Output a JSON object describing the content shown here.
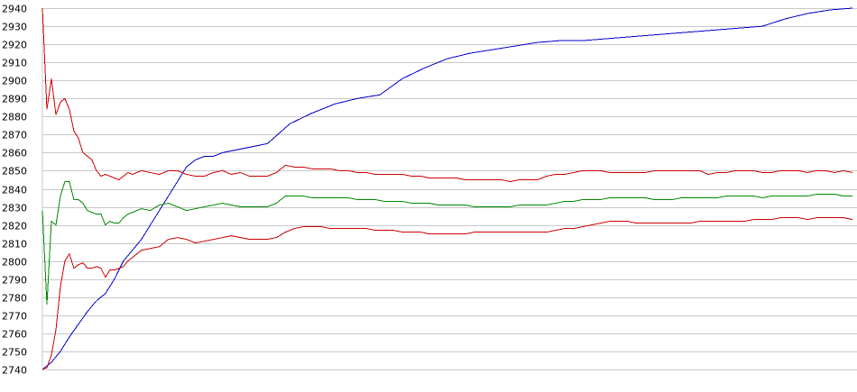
{
  "chart_data": {
    "type": "line",
    "title": "",
    "xlabel": "",
    "ylabel": "",
    "ylim": [
      2740,
      2940
    ],
    "xlim": [
      0,
      180
    ],
    "grid": true,
    "yticks": [
      "2940",
      "2930",
      "2920",
      "2910",
      "2900",
      "2890",
      "2880",
      "2870",
      "2860",
      "2850",
      "2840",
      "2830",
      "2820",
      "2810",
      "2800",
      "2790",
      "2780",
      "2770",
      "2760",
      "2750",
      "2740"
    ],
    "series": [
      {
        "color": "#0000cc",
        "x": [
          0,
          2,
          4,
          6,
          8,
          10,
          12,
          14,
          16,
          18,
          20,
          22,
          24,
          26,
          28,
          30,
          32,
          34,
          36,
          38,
          40,
          42,
          44,
          46,
          48,
          50,
          55,
          60,
          65,
          70,
          75,
          80,
          85,
          90,
          95,
          100,
          105,
          110,
          115,
          120,
          125,
          130,
          135,
          140,
          145,
          150,
          155,
          160,
          165,
          170,
          175,
          180
        ],
        "y": [
          2740,
          2744,
          2750,
          2758,
          2765,
          2772,
          2778,
          2782,
          2790,
          2800,
          2806,
          2812,
          2820,
          2828,
          2836,
          2844,
          2852,
          2856,
          2858,
          2858,
          2860,
          2861,
          2862,
          2863,
          2864,
          2865,
          2876,
          2882,
          2887,
          2890,
          2892,
          2901,
          2907,
          2912,
          2915,
          2917,
          2919,
          2921,
          2922,
          2922,
          2923,
          2924,
          2925,
          2926,
          2927,
          2928,
          2929,
          2930,
          2934,
          2937,
          2939,
          2940
        ]
      },
      {
        "color": "#cc0000",
        "x": [
          0,
          1,
          2,
          3,
          4,
          5,
          6,
          7,
          8,
          9,
          10,
          11,
          12,
          13,
          14,
          15,
          16,
          17,
          18,
          19,
          20,
          22,
          24,
          26,
          28,
          30,
          32,
          34,
          36,
          38,
          40,
          42,
          44,
          46,
          48,
          50,
          52,
          54,
          56,
          58,
          60,
          62,
          64,
          66,
          68,
          70,
          72,
          74,
          76,
          78,
          80,
          82,
          84,
          86,
          88,
          90,
          92,
          94,
          96,
          98,
          100,
          102,
          104,
          106,
          108,
          110,
          112,
          114,
          116,
          118,
          120,
          122,
          124,
          126,
          128,
          130,
          132,
          134,
          136,
          138,
          140,
          142,
          144,
          146,
          148,
          150,
          152,
          154,
          156,
          158,
          160,
          162,
          164,
          166,
          168,
          170,
          172,
          174,
          176,
          178,
          180
        ],
        "y": [
          2940,
          2884,
          2901,
          2881,
          2888,
          2890,
          2884,
          2872,
          2868,
          2860,
          2858,
          2856,
          2850,
          2847,
          2848,
          2847,
          2846,
          2845,
          2847,
          2849,
          2848,
          2850,
          2849,
          2848,
          2850,
          2850,
          2848,
          2847,
          2847,
          2849,
          2850,
          2848,
          2849,
          2847,
          2847,
          2847,
          2849,
          2853,
          2852,
          2852,
          2851,
          2851,
          2851,
          2850,
          2850,
          2849,
          2849,
          2848,
          2848,
          2848,
          2848,
          2847,
          2847,
          2846,
          2846,
          2846,
          2846,
          2845,
          2845,
          2845,
          2845,
          2845,
          2844,
          2845,
          2845,
          2845,
          2847,
          2848,
          2848,
          2849,
          2850,
          2850,
          2850,
          2849,
          2849,
          2849,
          2849,
          2849,
          2850,
          2850,
          2850,
          2850,
          2850,
          2850,
          2848,
          2849,
          2849,
          2850,
          2850,
          2850,
          2849,
          2849,
          2850,
          2850,
          2850,
          2849,
          2850,
          2850,
          2849,
          2850,
          2849
        ]
      },
      {
        "color": "#008800",
        "x": [
          0,
          1,
          2,
          3,
          4,
          5,
          6,
          7,
          8,
          9,
          10,
          11,
          12,
          13,
          14,
          15,
          16,
          17,
          18,
          19,
          20,
          22,
          24,
          26,
          28,
          30,
          32,
          34,
          36,
          38,
          40,
          42,
          44,
          46,
          48,
          50,
          52,
          54,
          56,
          58,
          60,
          62,
          64,
          66,
          68,
          70,
          72,
          74,
          76,
          78,
          80,
          82,
          84,
          86,
          88,
          90,
          92,
          94,
          96,
          98,
          100,
          102,
          104,
          106,
          108,
          110,
          112,
          114,
          116,
          118,
          120,
          122,
          124,
          126,
          128,
          130,
          132,
          134,
          136,
          138,
          140,
          142,
          144,
          146,
          148,
          150,
          152,
          154,
          156,
          158,
          160,
          162,
          164,
          166,
          168,
          170,
          172,
          174,
          176,
          178,
          180
        ],
        "y": [
          2828,
          2776,
          2822,
          2820,
          2836,
          2844,
          2844,
          2834,
          2834,
          2832,
          2828,
          2827,
          2826,
          2826,
          2820,
          2822,
          2821,
          2821,
          2824,
          2826,
          2827,
          2829,
          2828,
          2831,
          2832,
          2830,
          2828,
          2829,
          2830,
          2831,
          2832,
          2831,
          2830,
          2830,
          2830,
          2830,
          2832,
          2836,
          2836,
          2836,
          2835,
          2835,
          2835,
          2835,
          2835,
          2834,
          2834,
          2834,
          2833,
          2833,
          2833,
          2832,
          2832,
          2832,
          2831,
          2831,
          2831,
          2831,
          2830,
          2830,
          2830,
          2830,
          2830,
          2831,
          2831,
          2831,
          2831,
          2832,
          2833,
          2833,
          2834,
          2834,
          2834,
          2835,
          2835,
          2835,
          2835,
          2835,
          2834,
          2834,
          2834,
          2835,
          2835,
          2835,
          2835,
          2835,
          2836,
          2836,
          2836,
          2836,
          2835,
          2836,
          2836,
          2836,
          2836,
          2836,
          2837,
          2837,
          2837,
          2836,
          2836
        ]
      },
      {
        "color": "#cc0000",
        "x": [
          0,
          1,
          2,
          3,
          4,
          5,
          6,
          7,
          8,
          9,
          10,
          11,
          12,
          13,
          14,
          15,
          16,
          17,
          18,
          19,
          20,
          22,
          24,
          26,
          28,
          30,
          32,
          34,
          36,
          38,
          40,
          42,
          44,
          46,
          48,
          50,
          52,
          54,
          56,
          58,
          60,
          62,
          64,
          66,
          68,
          70,
          72,
          74,
          76,
          78,
          80,
          82,
          84,
          86,
          88,
          90,
          92,
          94,
          96,
          98,
          100,
          102,
          104,
          106,
          108,
          110,
          112,
          114,
          116,
          118,
          120,
          122,
          124,
          126,
          128,
          130,
          132,
          134,
          136,
          138,
          140,
          142,
          144,
          146,
          148,
          150,
          152,
          154,
          156,
          158,
          160,
          162,
          164,
          166,
          168,
          170,
          172,
          174,
          176,
          178,
          180
        ],
        "y": [
          2740,
          2741,
          2748,
          2762,
          2786,
          2800,
          2804,
          2796,
          2798,
          2799,
          2796,
          2796,
          2797,
          2796,
          2791,
          2795,
          2795,
          2796,
          2797,
          2800,
          2802,
          2806,
          2807,
          2808,
          2812,
          2813,
          2812,
          2810,
          2811,
          2812,
          2813,
          2814,
          2813,
          2812,
          2812,
          2812,
          2813,
          2816,
          2818,
          2819,
          2819,
          2819,
          2818,
          2818,
          2818,
          2818,
          2818,
          2817,
          2817,
          2817,
          2816,
          2816,
          2816,
          2815,
          2815,
          2815,
          2815,
          2815,
          2816,
          2816,
          2816,
          2816,
          2816,
          2816,
          2816,
          2816,
          2816,
          2817,
          2818,
          2818,
          2819,
          2820,
          2821,
          2822,
          2822,
          2822,
          2821,
          2821,
          2821,
          2821,
          2821,
          2821,
          2821,
          2822,
          2822,
          2822,
          2822,
          2822,
          2822,
          2823,
          2823,
          2823,
          2824,
          2824,
          2824,
          2823,
          2824,
          2824,
          2824,
          2824,
          2823
        ]
      }
    ]
  }
}
